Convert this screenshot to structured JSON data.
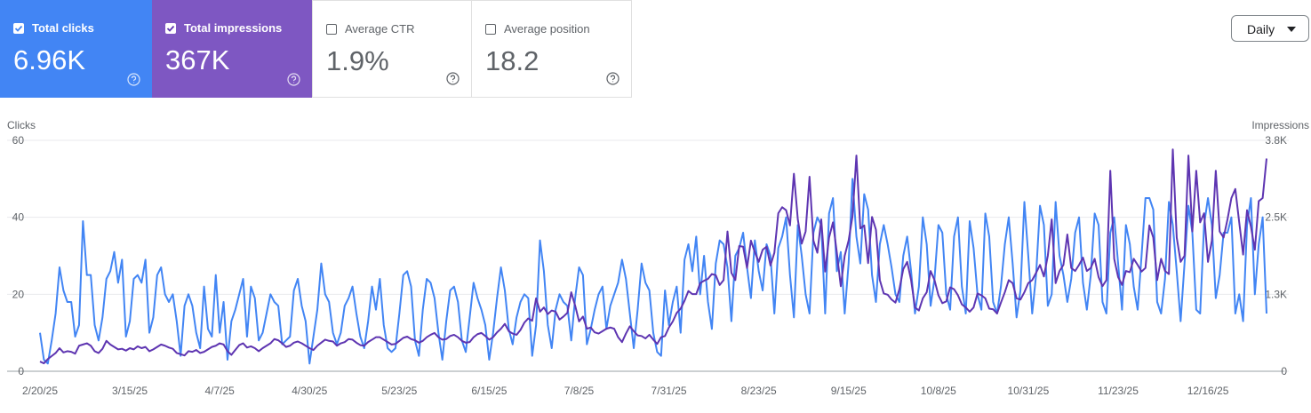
{
  "metrics": [
    {
      "label": "Total clicks",
      "value": "6.96K",
      "checked": true
    },
    {
      "label": "Total impressions",
      "value": "367K",
      "checked": true
    },
    {
      "label": "Average CTR",
      "value": "1.9%",
      "checked": false
    },
    {
      "label": "Average position",
      "value": "18.2",
      "checked": false
    }
  ],
  "period": "Daily",
  "chart_data": {
    "type": "line",
    "y_label": "Clicks",
    "y2_label": "Impressions",
    "categories": [
      "2/20/25",
      null,
      null,
      null,
      null,
      null,
      null,
      null,
      null,
      null,
      null,
      null,
      null,
      null,
      null,
      null,
      null,
      null,
      null,
      null,
      null,
      null,
      null,
      "3/15/25",
      null,
      null,
      null,
      null,
      null,
      null,
      null,
      null,
      null,
      null,
      null,
      null,
      null,
      null,
      null,
      null,
      null,
      null,
      null,
      null,
      null,
      null,
      "4/7/25",
      null,
      null,
      null,
      null,
      null,
      null,
      null,
      null,
      null,
      null,
      null,
      null,
      null,
      null,
      null,
      null,
      null,
      null,
      null,
      null,
      null,
      null,
      "4/30/25",
      null,
      null,
      null,
      null,
      null,
      null,
      null,
      null,
      null,
      null,
      null,
      null,
      null,
      null,
      null,
      null,
      null,
      null,
      null,
      null,
      null,
      null,
      "5/23/25",
      null,
      null,
      null,
      null,
      null,
      null,
      null,
      null,
      null,
      null,
      null,
      null,
      null,
      null,
      null,
      null,
      null,
      null,
      null,
      null,
      null,
      null,
      "6/15/25",
      null,
      null,
      null,
      null,
      null,
      null,
      null,
      null,
      null,
      null,
      null,
      null,
      null,
      null,
      null,
      null,
      null,
      null,
      null,
      null,
      null,
      null,
      "7/8/25",
      null,
      null,
      null,
      null,
      null,
      null,
      null,
      null,
      null,
      null,
      null,
      null,
      null,
      null,
      null,
      null,
      null,
      null,
      null,
      null,
      null,
      null,
      "7/31/25",
      null,
      null,
      null,
      null,
      null,
      null,
      null,
      null,
      null,
      null,
      null,
      null,
      null,
      null,
      null,
      null,
      null,
      null,
      null,
      null,
      null,
      null,
      "8/23/25",
      null,
      null,
      null,
      null,
      null,
      null,
      null,
      null,
      null,
      null,
      null,
      null,
      null,
      null,
      null,
      null,
      null,
      null,
      null,
      null,
      null,
      null,
      "9/15/25",
      null,
      null,
      null,
      null,
      null,
      null,
      null,
      null,
      null,
      null,
      null,
      null,
      null,
      null,
      null,
      null,
      null,
      null,
      null,
      null,
      null,
      null,
      "10/8/25",
      null,
      null,
      null,
      null,
      null,
      null,
      null,
      null,
      null,
      null,
      null,
      null,
      null,
      null,
      null,
      null,
      null,
      null,
      null,
      null,
      null,
      null,
      "10/31/25",
      null,
      null,
      null,
      null,
      null,
      null,
      null,
      null,
      null,
      null,
      null,
      null,
      null,
      null,
      null,
      null,
      null,
      null,
      null,
      null,
      null,
      null,
      "11/23/25",
      null,
      null,
      null,
      null,
      null,
      null,
      null,
      null,
      null,
      null,
      null,
      null,
      null,
      null,
      null,
      null,
      null,
      null,
      null,
      null,
      null,
      null,
      "12/16/25",
      null,
      null,
      null,
      null,
      null,
      null,
      null,
      null,
      null,
      null,
      null,
      null,
      null,
      null,
      null
    ],
    "ylim": [
      0,
      60
    ],
    "yticks": [
      0,
      20,
      40,
      60
    ],
    "y2lim": [
      0,
      3800
    ],
    "y2ticks": [
      0,
      {
        "value": 1267,
        "label": "1.3K"
      },
      {
        "value": 2533,
        "label": "2.5K"
      },
      {
        "value": 3800,
        "label": "3.8K"
      }
    ],
    "grid": true,
    "series": [
      {
        "name": "Total clicks",
        "color": "#4285f4",
        "axis": "y",
        "values": [
          10,
          3,
          2,
          8,
          15,
          27,
          21,
          18,
          18,
          9,
          12,
          39,
          25,
          25,
          12,
          8,
          14,
          24,
          26,
          31,
          23,
          29,
          9,
          13,
          24,
          25,
          23,
          29,
          10,
          14,
          25,
          27,
          20,
          18,
          20,
          13,
          4,
          17,
          20,
          17,
          10,
          6,
          22,
          11,
          9,
          25,
          10,
          18,
          3,
          13,
          16,
          20,
          24,
          9,
          22,
          19,
          8,
          10,
          15,
          20,
          18,
          17,
          7,
          8,
          9,
          21,
          24,
          17,
          13,
          2,
          9,
          16,
          28,
          20,
          18,
          10,
          7,
          10,
          17,
          19,
          22,
          15,
          9,
          6,
          13,
          22,
          16,
          24,
          12,
          6,
          5,
          6,
          15,
          25,
          26,
          22,
          8,
          4,
          16,
          24,
          23,
          19,
          10,
          3,
          13,
          21,
          22,
          18,
          8,
          5,
          14,
          23,
          19,
          16,
          12,
          3,
          10,
          19,
          27,
          21,
          11,
          7,
          14,
          18,
          20,
          19,
          4,
          12,
          34,
          26,
          12,
          6,
          16,
          20,
          18,
          17,
          8,
          19,
          27,
          25,
          7,
          11,
          16,
          20,
          22,
          11,
          17,
          20,
          23,
          29,
          24,
          15,
          6,
          16,
          28,
          23,
          21,
          10,
          5,
          4,
          21,
          12,
          18,
          22,
          10,
          29,
          33,
          26,
          35,
          20,
          30,
          18,
          11,
          28,
          34,
          33,
          27,
          13,
          30,
          32,
          36,
          27,
          19,
          34,
          26,
          21,
          33,
          30,
          15,
          32,
          35,
          40,
          25,
          14,
          38,
          30,
          20,
          15,
          36,
          40,
          38,
          15,
          41,
          45,
          26,
          31,
          15,
          28,
          50,
          35,
          28,
          46,
          42,
          25,
          18,
          33,
          38,
          33,
          27,
          20,
          18,
          30,
          35,
          26,
          15,
          22,
          40,
          33,
          17,
          24,
          38,
          36,
          20,
          16,
          35,
          40,
          22,
          15,
          39,
          32,
          20,
          16,
          41,
          35,
          18,
          15,
          22,
          33,
          40,
          28,
          14,
          21,
          44,
          30,
          15,
          25,
          43,
          38,
          17,
          20,
          44,
          30,
          25,
          18,
          24,
          36,
          40,
          23,
          16,
          25,
          41,
          38,
          18,
          15,
          36,
          40,
          28,
          16,
          38,
          33,
          22,
          16,
          30,
          45,
          45,
          42,
          18,
          15,
          24,
          44,
          38,
          26,
          13,
          28,
          43,
          36,
          16,
          15,
          38,
          45,
          38,
          19,
          25,
          36,
          36,
          40,
          15,
          20,
          13,
          38,
          45,
          20,
          33,
          40,
          15
        ]
      },
      {
        "name": "Total impressions",
        "color": "#5e35b1",
        "axis": "y2",
        "values": [
          160,
          130,
          200,
          250,
          300,
          380,
          310,
          330,
          320,
          290,
          420,
          440,
          460,
          420,
          330,
          300,
          370,
          500,
          440,
          400,
          360,
          370,
          340,
          380,
          360,
          410,
          380,
          400,
          330,
          360,
          400,
          440,
          420,
          390,
          370,
          300,
          280,
          260,
          330,
          320,
          350,
          300,
          320,
          360,
          400,
          420,
          460,
          440,
          330,
          270,
          350,
          430,
          460,
          390,
          410,
          380,
          330,
          380,
          420,
          460,
          530,
          510,
          460,
          400,
          420,
          470,
          490,
          460,
          420,
          380,
          350,
          420,
          470,
          520,
          500,
          490,
          420,
          460,
          480,
          530,
          520,
          470,
          430,
          420,
          480,
          520,
          560,
          560,
          520,
          480,
          440,
          450,
          500,
          550,
          570,
          530,
          510,
          470,
          500,
          560,
          600,
          630,
          560,
          520,
          530,
          580,
          600,
          560,
          500,
          470,
          480,
          560,
          610,
          630,
          580,
          520,
          560,
          640,
          700,
          780,
          660,
          620,
          600,
          680,
          800,
          870,
          830,
          1200,
          980,
          1050,
          940,
          1000,
          980,
          850,
          900,
          960,
          1300,
          1080,
          820,
          900,
          700,
          720,
          640,
          620,
          660,
          700,
          720,
          700,
          560,
          480,
          620,
          740,
          660,
          590,
          580,
          540,
          600,
          520,
          450,
          560,
          580,
          720,
          820,
          960,
          1030,
          1160,
          1320,
          1270,
          1270,
          1450,
          1490,
          1520,
          1600,
          1580,
          1420,
          1500,
          2300,
          1620,
          1500,
          2060,
          2050,
          1700,
          2150,
          1960,
          1800,
          2000,
          2050,
          1740,
          1950,
          2600,
          2700,
          2650,
          2400,
          3250,
          2500,
          2100,
          2300,
          3200,
          2150,
          1950,
          2500,
          1640,
          2200,
          2450,
          1950,
          1400,
          1900,
          2150,
          2550,
          3550,
          2350,
          2400,
          1780,
          2540,
          2330,
          1500,
          1280,
          1260,
          1180,
          1130,
          1350,
          1680,
          1800,
          1500,
          1050,
          1000,
          1200,
          1300,
          1650,
          1500,
          1250,
          1120,
          1150,
          1380,
          1350,
          1250,
          1100,
          1050,
          980,
          1050,
          1280,
          1250,
          1200,
          1030,
          1020,
          950,
          1130,
          1300,
          1500,
          1450,
          1200,
          1180,
          1300,
          1450,
          1500,
          1620,
          1750,
          1560,
          1900,
          2500,
          1450,
          1650,
          1750,
          2250,
          1700,
          1650,
          1750,
          1870,
          1650,
          1700,
          1850,
          1550,
          1400,
          1500,
          3300,
          1850,
          1550,
          1420,
          1650,
          1630,
          1850,
          1750,
          1640,
          1700,
          2400,
          2200,
          1500,
          1850,
          1650,
          1600,
          3650,
          2200,
          1800,
          1900,
          3550,
          2300,
          3300,
          2450,
          2600,
          1800,
          2150,
          3300,
          2300,
          2200,
          2500,
          2850,
          3000,
          2450,
          1920,
          2650,
          2380,
          2000,
          2800,
          2850,
          3500
        ]
      }
    ]
  }
}
